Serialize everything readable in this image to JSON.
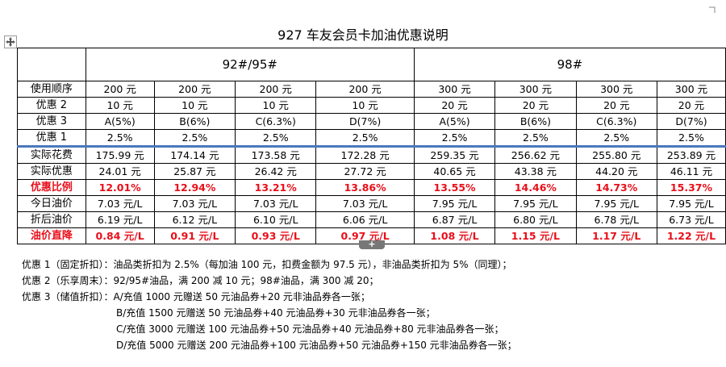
{
  "title": "927 车友会员卡加油优惠说明",
  "icons": {
    "corner": "corner-bracket-icon",
    "move": "move-handle-icon",
    "insert": "plus-icon"
  },
  "colors": {
    "red": "#e8101b",
    "separator": "#4a78bd"
  },
  "groups": [
    "92#/95#",
    "98#"
  ],
  "plus_label": "+",
  "rows": [
    {
      "label": "使用顺序",
      "cells": [
        "200 元",
        "200 元",
        "200 元",
        "200 元",
        "300 元",
        "300 元",
        "300 元",
        "300 元"
      ]
    },
    {
      "label": "优惠 2",
      "cells": [
        "10 元",
        "10 元",
        "10 元",
        "10 元",
        "20 元",
        "20 元",
        "20 元",
        "20 元"
      ]
    },
    {
      "label": "优惠 3",
      "cells": [
        "A(5%)",
        "B(6%)",
        "C(6.3%)",
        "D(7%)",
        "A(5%)",
        "B(6%)",
        "C(6.3%)",
        "D(7%)"
      ]
    },
    {
      "label": "优惠 1",
      "cells": [
        "2.5%",
        "2.5%",
        "2.5%",
        "2.5%",
        "2.5%",
        "2.5%",
        "2.5%",
        "2.5%"
      ]
    },
    {
      "label": "实际花费",
      "cells": [
        "175.99 元",
        "174.14 元",
        "173.58 元",
        "172.28 元",
        "259.35 元",
        "256.62 元",
        "255.80 元",
        "253.89 元"
      ]
    },
    {
      "label": "实际优惠",
      "cells": [
        "24.01 元",
        "25.87 元",
        "26.42 元",
        "27.72 元",
        "40.65 元",
        "43.38 元",
        "44.20 元",
        "46.11 元"
      ]
    },
    {
      "label": "优惠比例",
      "cells": [
        "12.01%",
        "12.94%",
        "13.21%",
        "13.86%",
        "13.55%",
        "14.46%",
        "14.73%",
        "15.37%"
      ]
    },
    {
      "label": "今日油价",
      "cells": [
        "7.03 元/L",
        "7.03 元/L",
        "7.03 元/L",
        "7.03 元/L",
        "7.95 元/L",
        "7.95 元/L",
        "7.95 元/L",
        "7.95 元/L"
      ]
    },
    {
      "label": "折后油价",
      "cells": [
        "6.19 元/L",
        "6.12 元/L",
        "6.10 元/L",
        "6.06 元/L",
        "6.87 元/L",
        "6.80 元/L",
        "6.78 元/L",
        "6.73 元/L"
      ]
    },
    {
      "label": "油价直降",
      "cells": [
        "0.84 元/L",
        "0.91 元/L",
        "0.93 元/L",
        "0.97 元/L",
        "1.08 元/L",
        "1.15 元/L",
        "1.17 元/L",
        "1.22 元/L"
      ]
    }
  ],
  "notes": [
    "优惠 1（固定折扣）：油品类折扣为 2.5%（每加油 100 元，扣费金额为 97.5 元），非油品类折扣为 5%（同理）；",
    "优惠 2（乐享周末）：92/95#油品，满 200 减 10 元；98#油品，满 300 减 20；",
    "优惠 3（储值折扣）：A/充值 1000 元赠送 50 元油品券+20 元非油品券各一张；",
    "B/充值 1500 元赠送 50 元油品券+40 元油品券+30 元非油品券各一张；",
    "C/充值 3000 元赠送 100 元油品券+50 元油品券+40 元油品券+80 元非油品券各一张；",
    "D/充值 5000 元赠送 200 元油品券+100 元油品券+50 元油品券+150 元非油品券各一张；"
  ]
}
